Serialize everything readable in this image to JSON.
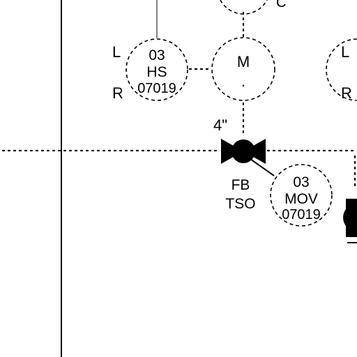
{
  "diagram": {
    "hand_switch": {
      "label_left": "L",
      "label_right": "R",
      "line1": "03",
      "line2": "HS",
      "line3": "07019"
    },
    "motor": {
      "label": "M",
      "dot": "."
    },
    "valve": {
      "size": "4\"",
      "fb": "FB",
      "tso": "TSO"
    },
    "mov_tag": {
      "line1": "03",
      "line2": "MOV",
      "line3": "07019"
    },
    "top_right_fragment": {
      "label": "C"
    },
    "right_fragment": {
      "label_left": "L",
      "label_right": "R"
    }
  }
}
